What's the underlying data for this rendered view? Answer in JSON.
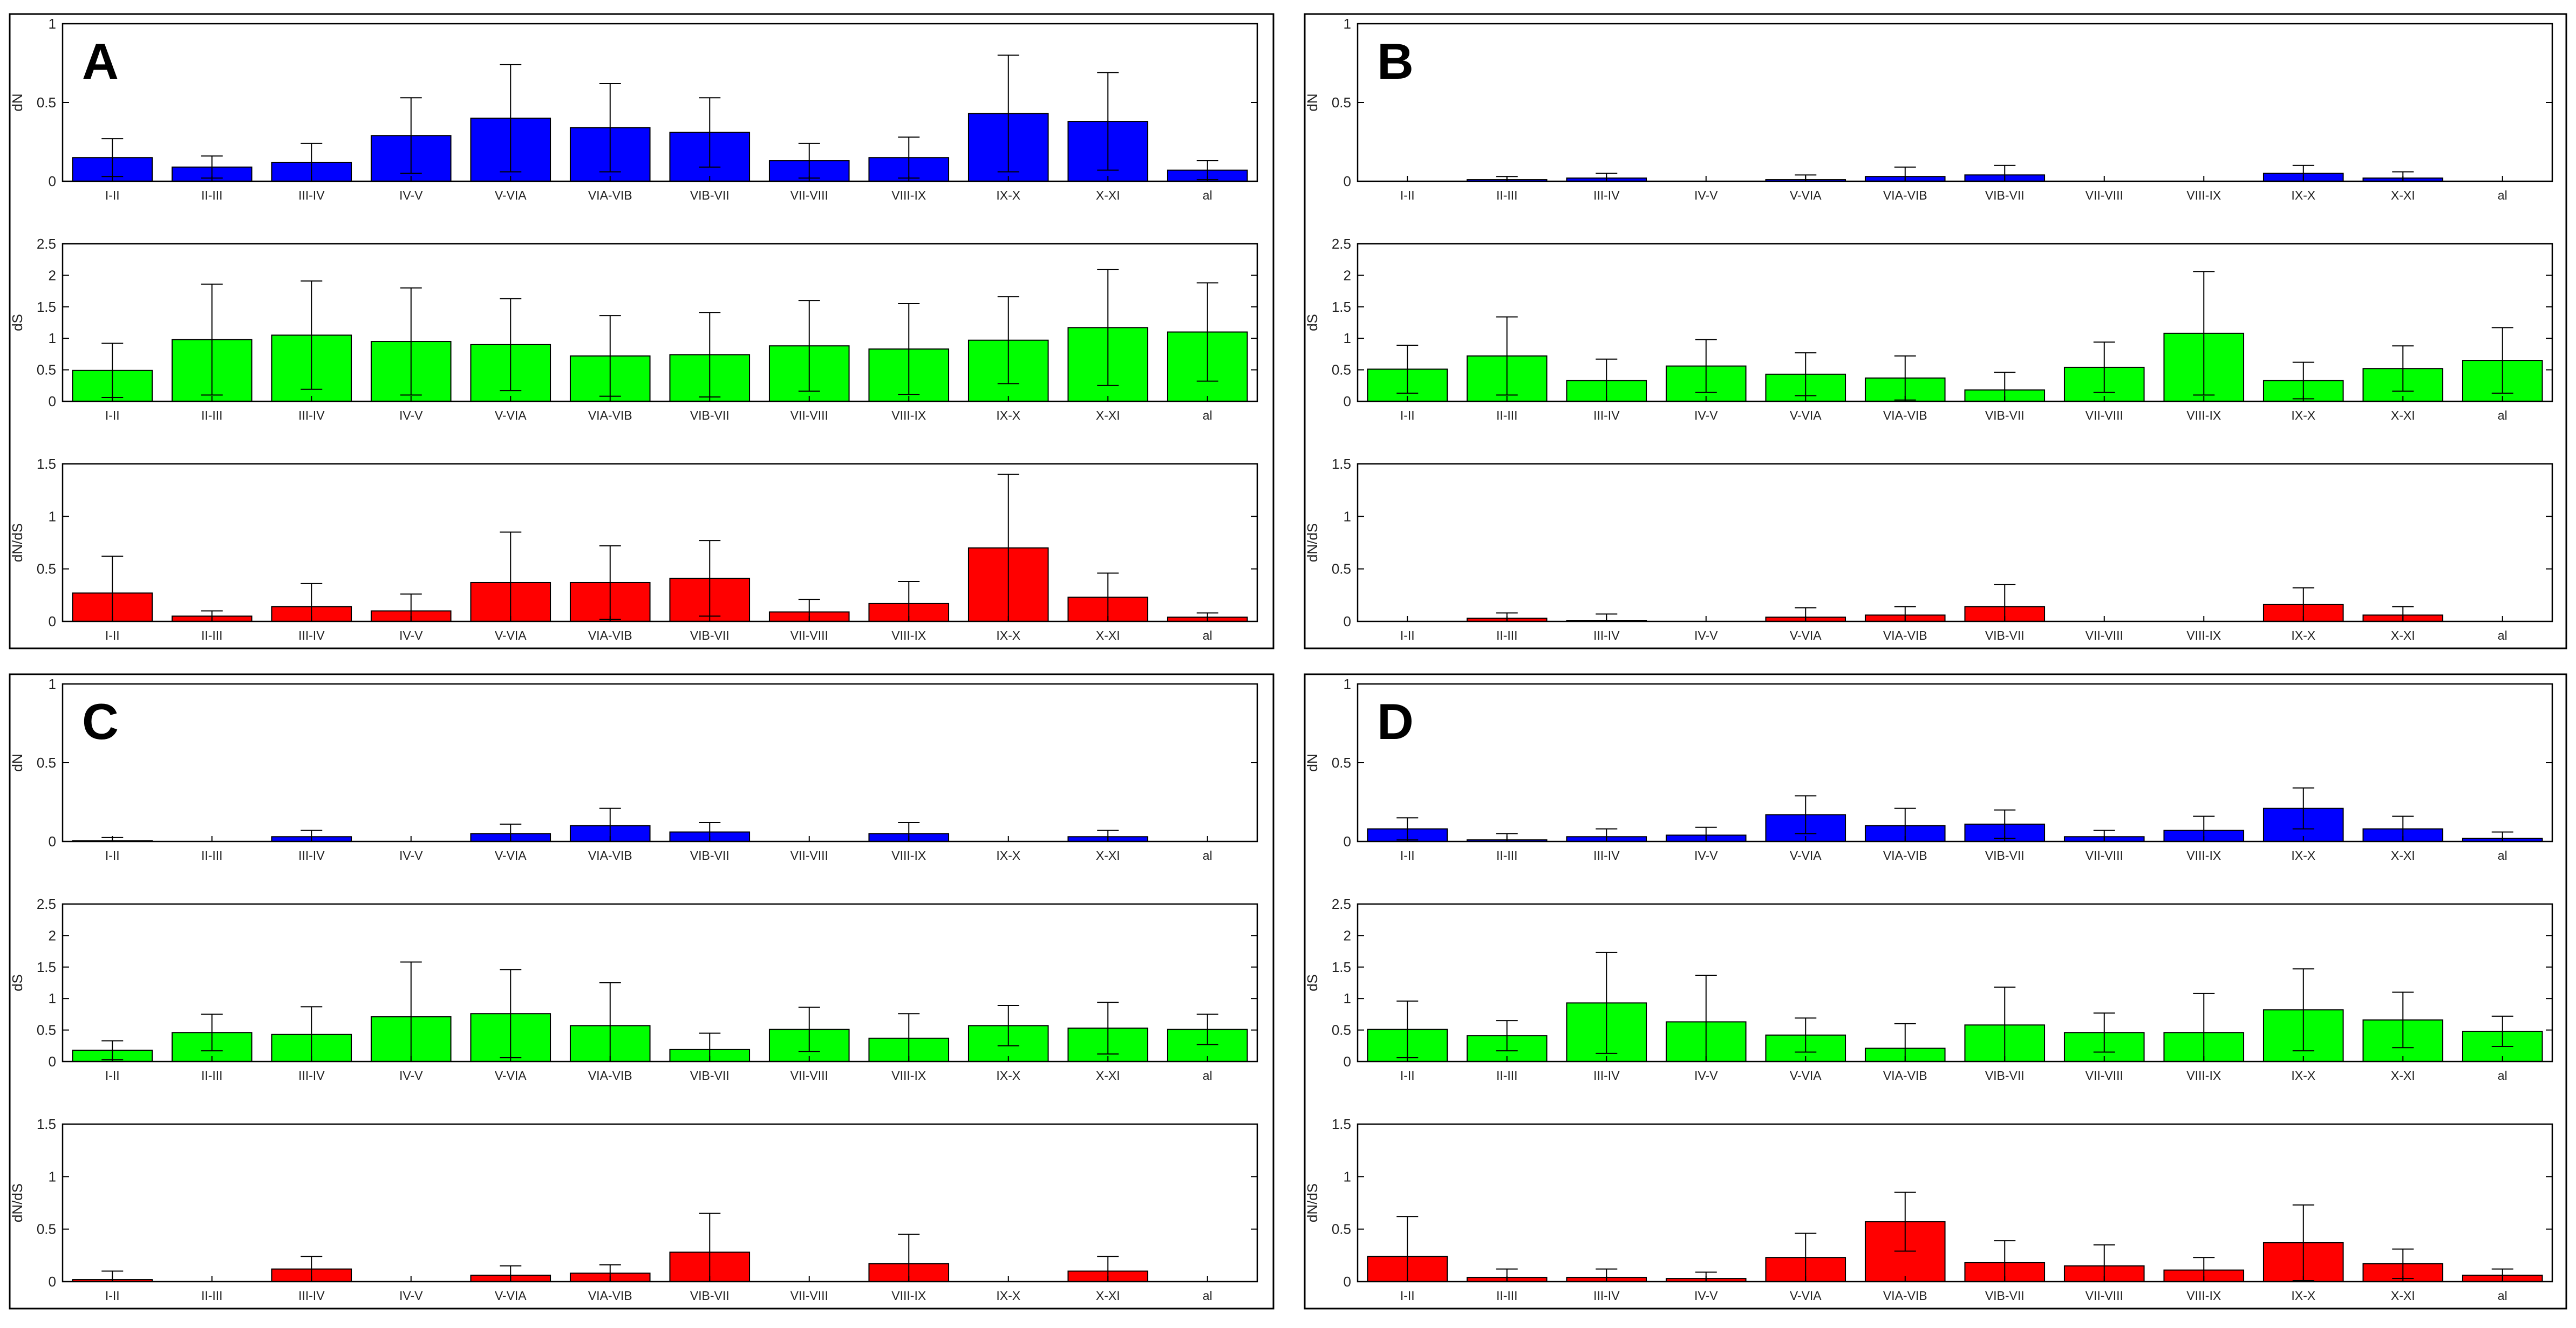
{
  "figure": {
    "colors": {
      "dN": "#0000ff",
      "dS": "#00ff00",
      "ratio": "#ff0000",
      "axis": "#000000"
    },
    "categories": [
      "I-II",
      "II-III",
      "III-IV",
      "IV-V",
      "V-VIA",
      "VIA-VIB",
      "VIB-VII",
      "VII-VIII",
      "VIII-IX",
      "IX-X",
      "X-XI",
      "al"
    ],
    "ylabels": {
      "dN": "dN",
      "dS": "dS",
      "ratio": "dN/dS"
    },
    "yticks": {
      "dN": [
        "0",
        "0.5",
        "1"
      ],
      "dS": [
        "0",
        "0.5",
        "1",
        "1.5",
        "2",
        "2.5"
      ],
      "ratio": [
        "0",
        "0.5",
        "1",
        "1.5"
      ]
    }
  },
  "chart_data": [
    {
      "panel": "A",
      "type": "bar",
      "categories": [
        "I-II",
        "II-III",
        "III-IV",
        "IV-V",
        "V-VIA",
        "VIA-VIB",
        "VIB-VII",
        "VII-VIII",
        "VIII-IX",
        "IX-X",
        "X-XI",
        "al"
      ],
      "series": [
        {
          "name": "dN",
          "ylim": [
            0,
            1
          ],
          "values": [
            0.15,
            0.09,
            0.12,
            0.29,
            0.4,
            0.34,
            0.31,
            0.13,
            0.15,
            0.43,
            0.38,
            0.07
          ],
          "errors": [
            0.12,
            0.07,
            0.12,
            0.24,
            0.34,
            0.28,
            0.22,
            0.11,
            0.13,
            0.37,
            0.31,
            0.06
          ]
        },
        {
          "name": "dS",
          "ylim": [
            0,
            2.5
          ],
          "values": [
            0.49,
            0.98,
            1.05,
            0.95,
            0.9,
            0.72,
            0.74,
            0.88,
            0.83,
            0.97,
            1.17,
            1.1
          ],
          "errors": [
            0.43,
            0.88,
            0.86,
            0.85,
            0.73,
            0.64,
            0.67,
            0.72,
            0.72,
            0.69,
            0.92,
            0.78
          ]
        },
        {
          "name": "dN/dS",
          "ylim": [
            0,
            1.5
          ],
          "values": [
            0.27,
            0.05,
            0.14,
            0.1,
            0.37,
            0.37,
            0.41,
            0.09,
            0.17,
            0.7,
            0.23,
            0.04
          ],
          "errors": [
            0.35,
            0.05,
            0.22,
            0.16,
            0.48,
            0.35,
            0.36,
            0.12,
            0.21,
            0.7,
            0.23,
            0.04
          ]
        }
      ]
    },
    {
      "panel": "B",
      "type": "bar",
      "categories": [
        "I-II",
        "II-III",
        "III-IV",
        "IV-V",
        "V-VIA",
        "VIA-VIB",
        "VIB-VII",
        "VII-VIII",
        "VIII-IX",
        "IX-X",
        "X-XI",
        "al"
      ],
      "series": [
        {
          "name": "dN",
          "ylim": [
            0,
            1
          ],
          "values": [
            0,
            0.01,
            0.02,
            0,
            0.01,
            0.03,
            0.04,
            0,
            0,
            0.05,
            0.02,
            0
          ],
          "errors": [
            0,
            0.02,
            0.03,
            0,
            0.03,
            0.06,
            0.06,
            0,
            0,
            0.05,
            0.04,
            0
          ]
        },
        {
          "name": "dS",
          "ylim": [
            0,
            2.5
          ],
          "values": [
            0.51,
            0.72,
            0.33,
            0.56,
            0.43,
            0.37,
            0.18,
            0.54,
            1.08,
            0.33,
            0.52,
            0.65
          ],
          "errors": [
            0.38,
            0.62,
            0.34,
            0.42,
            0.34,
            0.35,
            0.28,
            0.4,
            0.98,
            0.29,
            0.36,
            0.52
          ]
        },
        {
          "name": "dN/dS",
          "ylim": [
            0,
            1.5
          ],
          "values": [
            0,
            0.03,
            0.01,
            0,
            0.04,
            0.06,
            0.14,
            0,
            0,
            0.16,
            0.06,
            0
          ],
          "errors": [
            0,
            0.05,
            0.06,
            0,
            0.09,
            0.08,
            0.21,
            0,
            0,
            0.16,
            0.08,
            0
          ]
        }
      ]
    },
    {
      "panel": "C",
      "type": "bar",
      "categories": [
        "I-II",
        "II-III",
        "III-IV",
        "IV-V",
        "V-VIA",
        "VIA-VIB",
        "VIB-VII",
        "VII-VIII",
        "VIII-IX",
        "IX-X",
        "X-XI",
        "al"
      ],
      "series": [
        {
          "name": "dN",
          "ylim": [
            0,
            1
          ],
          "values": [
            0.005,
            0,
            0.03,
            0,
            0.05,
            0.1,
            0.06,
            0,
            0.05,
            0,
            0.03,
            0
          ],
          "errors": [
            0.02,
            0,
            0.04,
            0,
            0.06,
            0.11,
            0.06,
            0,
            0.07,
            0,
            0.04,
            0
          ]
        },
        {
          "name": "dS",
          "ylim": [
            0,
            2.5
          ],
          "values": [
            0.18,
            0.46,
            0.43,
            0.71,
            0.76,
            0.57,
            0.19,
            0.51,
            0.37,
            0.57,
            0.53,
            0.51
          ],
          "errors": [
            0.15,
            0.29,
            0.44,
            0.87,
            0.7,
            0.68,
            0.26,
            0.35,
            0.39,
            0.32,
            0.41,
            0.24
          ]
        },
        {
          "name": "dN/dS",
          "ylim": [
            0,
            1.5
          ],
          "values": [
            0.02,
            0,
            0.12,
            0,
            0.06,
            0.08,
            0.28,
            0,
            0.17,
            0,
            0.1,
            0
          ],
          "errors": [
            0.08,
            0,
            0.12,
            0,
            0.09,
            0.08,
            0.37,
            0,
            0.28,
            0,
            0.14,
            0
          ]
        }
      ]
    },
    {
      "panel": "D",
      "type": "bar",
      "categories": [
        "I-II",
        "II-III",
        "III-IV",
        "IV-V",
        "V-VIA",
        "VIA-VIB",
        "VIB-VII",
        "VII-VIII",
        "VIII-IX",
        "IX-X",
        "X-XI",
        "al"
      ],
      "series": [
        {
          "name": "dN",
          "ylim": [
            0,
            1
          ],
          "values": [
            0.08,
            0.01,
            0.03,
            0.04,
            0.17,
            0.1,
            0.11,
            0.03,
            0.07,
            0.21,
            0.08,
            0.02
          ],
          "errors": [
            0.07,
            0.04,
            0.05,
            0.05,
            0.12,
            0.11,
            0.09,
            0.04,
            0.09,
            0.13,
            0.08,
            0.04
          ]
        },
        {
          "name": "dS",
          "ylim": [
            0,
            2.5
          ],
          "values": [
            0.51,
            0.41,
            0.93,
            0.63,
            0.42,
            0.21,
            0.58,
            0.46,
            0.46,
            0.82,
            0.66,
            0.48
          ],
          "errors": [
            0.45,
            0.24,
            0.8,
            0.74,
            0.27,
            0.39,
            0.6,
            0.31,
            0.62,
            0.65,
            0.44,
            0.24
          ]
        },
        {
          "name": "dN/dS",
          "ylim": [
            0,
            1.5
          ],
          "values": [
            0.24,
            0.04,
            0.04,
            0.03,
            0.23,
            0.57,
            0.18,
            0.15,
            0.11,
            0.37,
            0.17,
            0.06
          ],
          "errors": [
            0.38,
            0.08,
            0.08,
            0.06,
            0.23,
            0.28,
            0.21,
            0.2,
            0.12,
            0.36,
            0.14,
            0.06
          ]
        }
      ]
    }
  ]
}
